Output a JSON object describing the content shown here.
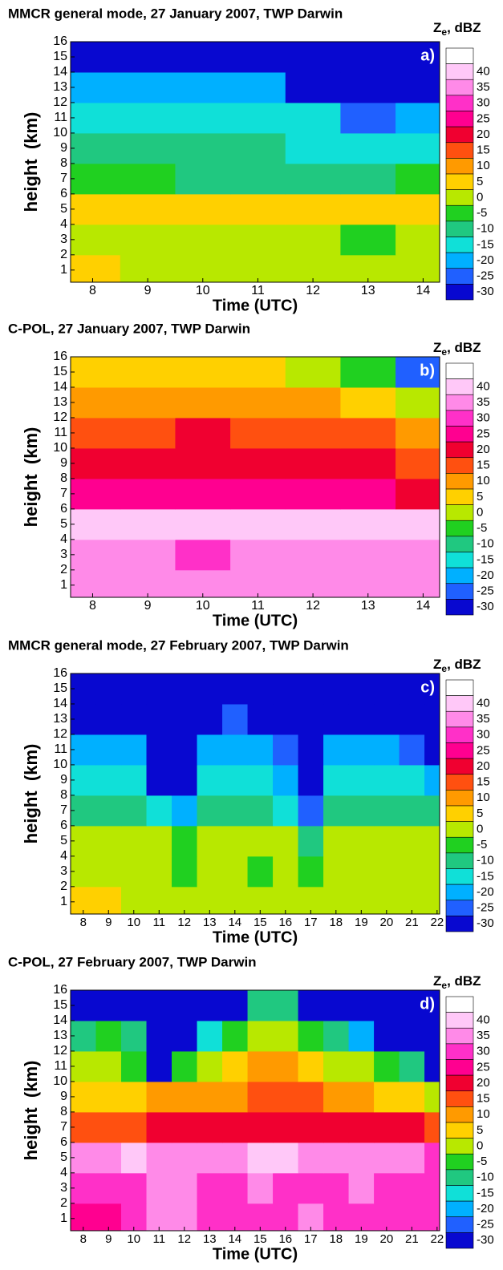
{
  "chart_data": [
    {
      "type": "heatmap",
      "title": "MMCR general mode, 27 January 2007, TWP Darwin",
      "panel_label": "a)",
      "xlabel": "Time (UTC)",
      "ylabel": "height  (km)",
      "x": [
        8,
        9,
        10,
        11,
        12,
        13,
        14
      ],
      "y": [
        1,
        3,
        5,
        7,
        9,
        11,
        13,
        15
      ],
      "z": [
        [
          5,
          0,
          0,
          0,
          0,
          0,
          0
        ],
        [
          0,
          0,
          0,
          0,
          0,
          -5,
          0
        ],
        [
          5,
          5,
          5,
          5,
          5,
          5,
          5
        ],
        [
          -5,
          -5,
          -10,
          -10,
          -10,
          -10,
          -5
        ],
        [
          -10,
          -10,
          -10,
          -10,
          -15,
          -15,
          -15
        ],
        [
          -15,
          -15,
          -15,
          -15,
          -15,
          -25,
          -20
        ],
        [
          -20,
          -20,
          -20,
          -20,
          -30,
          -30,
          -30
        ],
        [
          -30,
          -30,
          -30,
          -30,
          -30,
          -30,
          -30
        ]
      ],
      "xlim": [
        7.6,
        14.3
      ],
      "ylim": [
        0.2,
        16
      ],
      "xticks": [
        8,
        9,
        10,
        11,
        12,
        13,
        14
      ],
      "yticks": [
        1,
        2,
        3,
        4,
        5,
        6,
        7,
        8,
        9,
        10,
        11,
        12,
        13,
        14,
        15,
        16
      ],
      "colorbar": {
        "symbol": "Z",
        "subscript": "e",
        "unit": ", dBZ",
        "ticks": [
          40,
          35,
          30,
          25,
          20,
          15,
          10,
          5,
          0,
          -5,
          -10,
          -15,
          -20,
          -25,
          -30
        ],
        "colors": [
          "#ffc8f8",
          "#ff8ae8",
          "#ff30c8",
          "#ff0090",
          "#f00030",
          "#ff5010",
          "#ff9a00",
          "#ffd000",
          "#b8e800",
          "#20d020",
          "#20c880",
          "#10e0d8",
          "#00b0ff",
          "#2060ff",
          "#0808d0"
        ]
      }
    },
    {
      "type": "heatmap",
      "title": "C-POL, 27 January 2007, TWP Darwin",
      "panel_label": "b)",
      "xlabel": "Time (UTC)",
      "ylabel": "height  (km)",
      "x": [
        8,
        9,
        10,
        11,
        12,
        13,
        14
      ],
      "y": [
        1,
        3,
        5,
        7,
        9,
        11,
        13,
        15
      ],
      "z": [
        [
          35,
          35,
          35,
          35,
          35,
          35,
          35
        ],
        [
          35,
          35,
          30,
          35,
          35,
          35,
          35
        ],
        [
          40,
          40,
          40,
          40,
          40,
          40,
          40
        ],
        [
          25,
          25,
          25,
          25,
          25,
          25,
          20
        ],
        [
          20,
          20,
          20,
          20,
          20,
          20,
          15
        ],
        [
          15,
          15,
          20,
          15,
          15,
          15,
          10
        ],
        [
          10,
          10,
          10,
          10,
          10,
          5,
          0
        ],
        [
          5,
          5,
          5,
          5,
          0,
          -5,
          -25
        ]
      ],
      "xlim": [
        7.6,
        14.3
      ],
      "ylim": [
        0.2,
        16
      ],
      "xticks": [
        8,
        9,
        10,
        11,
        12,
        13,
        14
      ],
      "yticks": [
        1,
        2,
        3,
        4,
        5,
        6,
        7,
        8,
        9,
        10,
        11,
        12,
        13,
        14,
        15,
        16
      ],
      "colorbar": {
        "symbol": "Z",
        "subscript": "e",
        "unit": ", dBZ",
        "ticks": [
          40,
          35,
          30,
          25,
          20,
          15,
          10,
          5,
          0,
          -5,
          -10,
          -15,
          -20,
          -25,
          -30
        ],
        "colors": [
          "#ffc8f8",
          "#ff8ae8",
          "#ff30c8",
          "#ff0090",
          "#f00030",
          "#ff5010",
          "#ff9a00",
          "#ffd000",
          "#b8e800",
          "#20d020",
          "#20c880",
          "#10e0d8",
          "#00b0ff",
          "#2060ff",
          "#0808d0"
        ]
      }
    },
    {
      "type": "heatmap",
      "title": "MMCR general mode, 27 February 2007, TWP Darwin",
      "panel_label": "c)",
      "xlabel": "Time (UTC)",
      "ylabel": "height  (km)",
      "x": [
        8,
        9,
        10,
        11,
        12,
        13,
        14,
        15,
        16,
        17,
        18,
        19,
        20,
        21,
        22
      ],
      "y": [
        1,
        3,
        5,
        7,
        9,
        11,
        13,
        15
      ],
      "z": [
        [
          5,
          5,
          0,
          0,
          0,
          0,
          0,
          0,
          0,
          0,
          0,
          0,
          0,
          0,
          0
        ],
        [
          0,
          0,
          0,
          0,
          -5,
          0,
          0,
          -5,
          0,
          -5,
          0,
          0,
          0,
          0,
          0
        ],
        [
          0,
          0,
          0,
          0,
          -5,
          0,
          0,
          0,
          0,
          -10,
          0,
          0,
          0,
          0,
          0
        ],
        [
          -10,
          -10,
          -10,
          -15,
          -20,
          -10,
          -10,
          -10,
          -15,
          -25,
          -10,
          -10,
          -10,
          -10,
          -10
        ],
        [
          -15,
          -15,
          -15,
          -30,
          -30,
          -15,
          -15,
          -15,
          -20,
          -30,
          -15,
          -15,
          -15,
          -15,
          -20
        ],
        [
          -20,
          -20,
          -20,
          -30,
          -30,
          -20,
          -20,
          -20,
          -25,
          -30,
          -20,
          -20,
          -20,
          -25,
          -30
        ],
        [
          -30,
          -30,
          -30,
          -30,
          -30,
          -30,
          -25,
          -30,
          -30,
          -30,
          -30,
          -30,
          -30,
          -30,
          -30
        ],
        [
          -30,
          -30,
          -30,
          -30,
          -30,
          -30,
          -30,
          -30,
          -30,
          -30,
          -30,
          -30,
          -30,
          -30,
          -30
        ]
      ],
      "xlim": [
        7.5,
        22.1
      ],
      "ylim": [
        0.2,
        16
      ],
      "xticks": [
        8,
        9,
        10,
        11,
        12,
        13,
        14,
        15,
        16,
        17,
        18,
        19,
        20,
        21,
        22
      ],
      "yticks": [
        1,
        2,
        3,
        4,
        5,
        6,
        7,
        8,
        9,
        10,
        11,
        12,
        13,
        14,
        15,
        16
      ],
      "colorbar": {
        "symbol": "Z",
        "subscript": "e",
        "unit": ", dBZ",
        "ticks": [
          40,
          35,
          30,
          25,
          20,
          15,
          10,
          5,
          0,
          -5,
          -10,
          -15,
          -20,
          -25,
          -30
        ],
        "colors": [
          "#ffc8f8",
          "#ff8ae8",
          "#ff30c8",
          "#ff0090",
          "#f00030",
          "#ff5010",
          "#ff9a00",
          "#ffd000",
          "#b8e800",
          "#20d020",
          "#20c880",
          "#10e0d8",
          "#00b0ff",
          "#2060ff",
          "#0808d0"
        ]
      }
    },
    {
      "type": "heatmap",
      "title": "C-POL, 27 February 2007, TWP Darwin",
      "panel_label": "d)",
      "xlabel": "Time (UTC)",
      "ylabel": "height  (km)",
      "x": [
        8,
        9,
        10,
        11,
        12,
        13,
        14,
        15,
        16,
        17,
        18,
        19,
        20,
        21,
        22
      ],
      "y": [
        1,
        3,
        5,
        7,
        9,
        11,
        13,
        15
      ],
      "z": [
        [
          25,
          25,
          30,
          35,
          35,
          30,
          30,
          30,
          30,
          35,
          30,
          30,
          30,
          30,
          30
        ],
        [
          30,
          30,
          30,
          35,
          35,
          30,
          30,
          35,
          30,
          30,
          30,
          35,
          30,
          30,
          30
        ],
        [
          35,
          35,
          40,
          35,
          35,
          35,
          35,
          40,
          40,
          35,
          35,
          35,
          35,
          35,
          30
        ],
        [
          15,
          15,
          15,
          20,
          20,
          20,
          20,
          20,
          20,
          20,
          20,
          20,
          20,
          20,
          15
        ],
        [
          5,
          5,
          5,
          10,
          10,
          10,
          10,
          15,
          15,
          15,
          10,
          10,
          5,
          5,
          0
        ],
        [
          0,
          0,
          -5,
          -30,
          -5,
          0,
          5,
          10,
          10,
          5,
          0,
          0,
          -5,
          -10,
          -30
        ],
        [
          -10,
          -5,
          -10,
          -30,
          -30,
          -15,
          -5,
          0,
          0,
          -5,
          -10,
          -20,
          -30,
          -30,
          -30
        ],
        [
          -30,
          -30,
          -30,
          -30,
          -30,
          -30,
          -30,
          -10,
          -10,
          -30,
          -30,
          -30,
          -30,
          -30,
          -30
        ]
      ],
      "xlim": [
        7.5,
        22.1
      ],
      "ylim": [
        0.2,
        16
      ],
      "xticks": [
        8,
        9,
        10,
        11,
        12,
        13,
        14,
        15,
        16,
        17,
        18,
        19,
        20,
        21,
        22
      ],
      "yticks": [
        1,
        2,
        3,
        4,
        5,
        6,
        7,
        8,
        9,
        10,
        11,
        12,
        13,
        14,
        15,
        16
      ],
      "colorbar": {
        "symbol": "Z",
        "subscript": "e",
        "unit": ", dBZ",
        "ticks": [
          40,
          35,
          30,
          25,
          20,
          15,
          10,
          5,
          0,
          -5,
          -10,
          -15,
          -20,
          -25,
          -30
        ],
        "colors": [
          "#ffc8f8",
          "#ff8ae8",
          "#ff30c8",
          "#ff0090",
          "#f00030",
          "#ff5010",
          "#ff9a00",
          "#ffd000",
          "#b8e800",
          "#20d020",
          "#20c880",
          "#10e0d8",
          "#00b0ff",
          "#2060ff",
          "#0808d0"
        ]
      }
    }
  ]
}
